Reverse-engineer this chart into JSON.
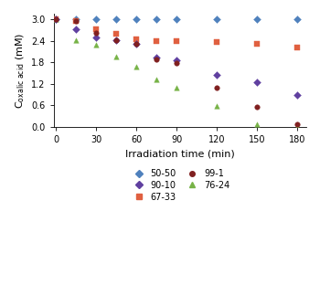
{
  "title": "",
  "xlabel": "Irradiation time (min)",
  "ylabel": "C$_\\mathrm{oxalic\\ acid}$ (mM)",
  "xlim": [
    -2,
    187
  ],
  "ylim": [
    0,
    3.15
  ],
  "xticks": [
    0,
    30,
    60,
    90,
    120,
    150,
    180
  ],
  "yticks": [
    0,
    0.6,
    1.2,
    1.8,
    2.4,
    3.0
  ],
  "series": {
    "50-50": {
      "x": [
        0,
        15,
        30,
        45,
        60,
        75,
        90,
        120,
        150,
        180
      ],
      "y": [
        3.0,
        3.0,
        3.0,
        3.0,
        3.0,
        3.0,
        3.0,
        3.0,
        3.0,
        3.0
      ],
      "color": "#4f81bd",
      "marker": "D",
      "markersize": 4
    },
    "67-33": {
      "x": [
        0,
        15,
        30,
        45,
        60,
        75,
        90,
        120,
        150,
        180
      ],
      "y": [
        3.0,
        2.95,
        2.72,
        2.58,
        2.45,
        2.4,
        2.38,
        2.35,
        2.3,
        2.22
      ],
      "color": "#e06040",
      "marker": "s",
      "markersize": 4
    },
    "76-24": {
      "x": [
        0,
        15,
        30,
        45,
        60,
        75,
        90,
        120,
        150,
        180
      ],
      "y": [
        3.0,
        2.42,
        2.28,
        1.95,
        1.68,
        1.32,
        1.1,
        0.58,
        0.08,
        0.0
      ],
      "color": "#77b347",
      "marker": "^",
      "markersize": 4
    },
    "90-10": {
      "x": [
        0,
        15,
        30,
        45,
        60,
        75,
        90,
        120,
        150,
        180
      ],
      "y": [
        3.0,
        2.72,
        2.48,
        2.42,
        2.32,
        1.93,
        1.85,
        1.45,
        1.25,
        0.9
      ],
      "color": "#6040a0",
      "marker": "D",
      "markersize": 4
    },
    "99-1": {
      "x": [
        0,
        15,
        30,
        45,
        60,
        75,
        90,
        120,
        150,
        180
      ],
      "y": [
        3.0,
        2.95,
        2.62,
        2.42,
        2.3,
        1.88,
        1.78,
        1.1,
        0.55,
        0.08
      ],
      "color": "#802020",
      "marker": "o",
      "markersize": 4
    }
  },
  "legend_fontsize": 7,
  "tick_fontsize": 7,
  "label_fontsize": 8,
  "bg_color": "#ffffff"
}
